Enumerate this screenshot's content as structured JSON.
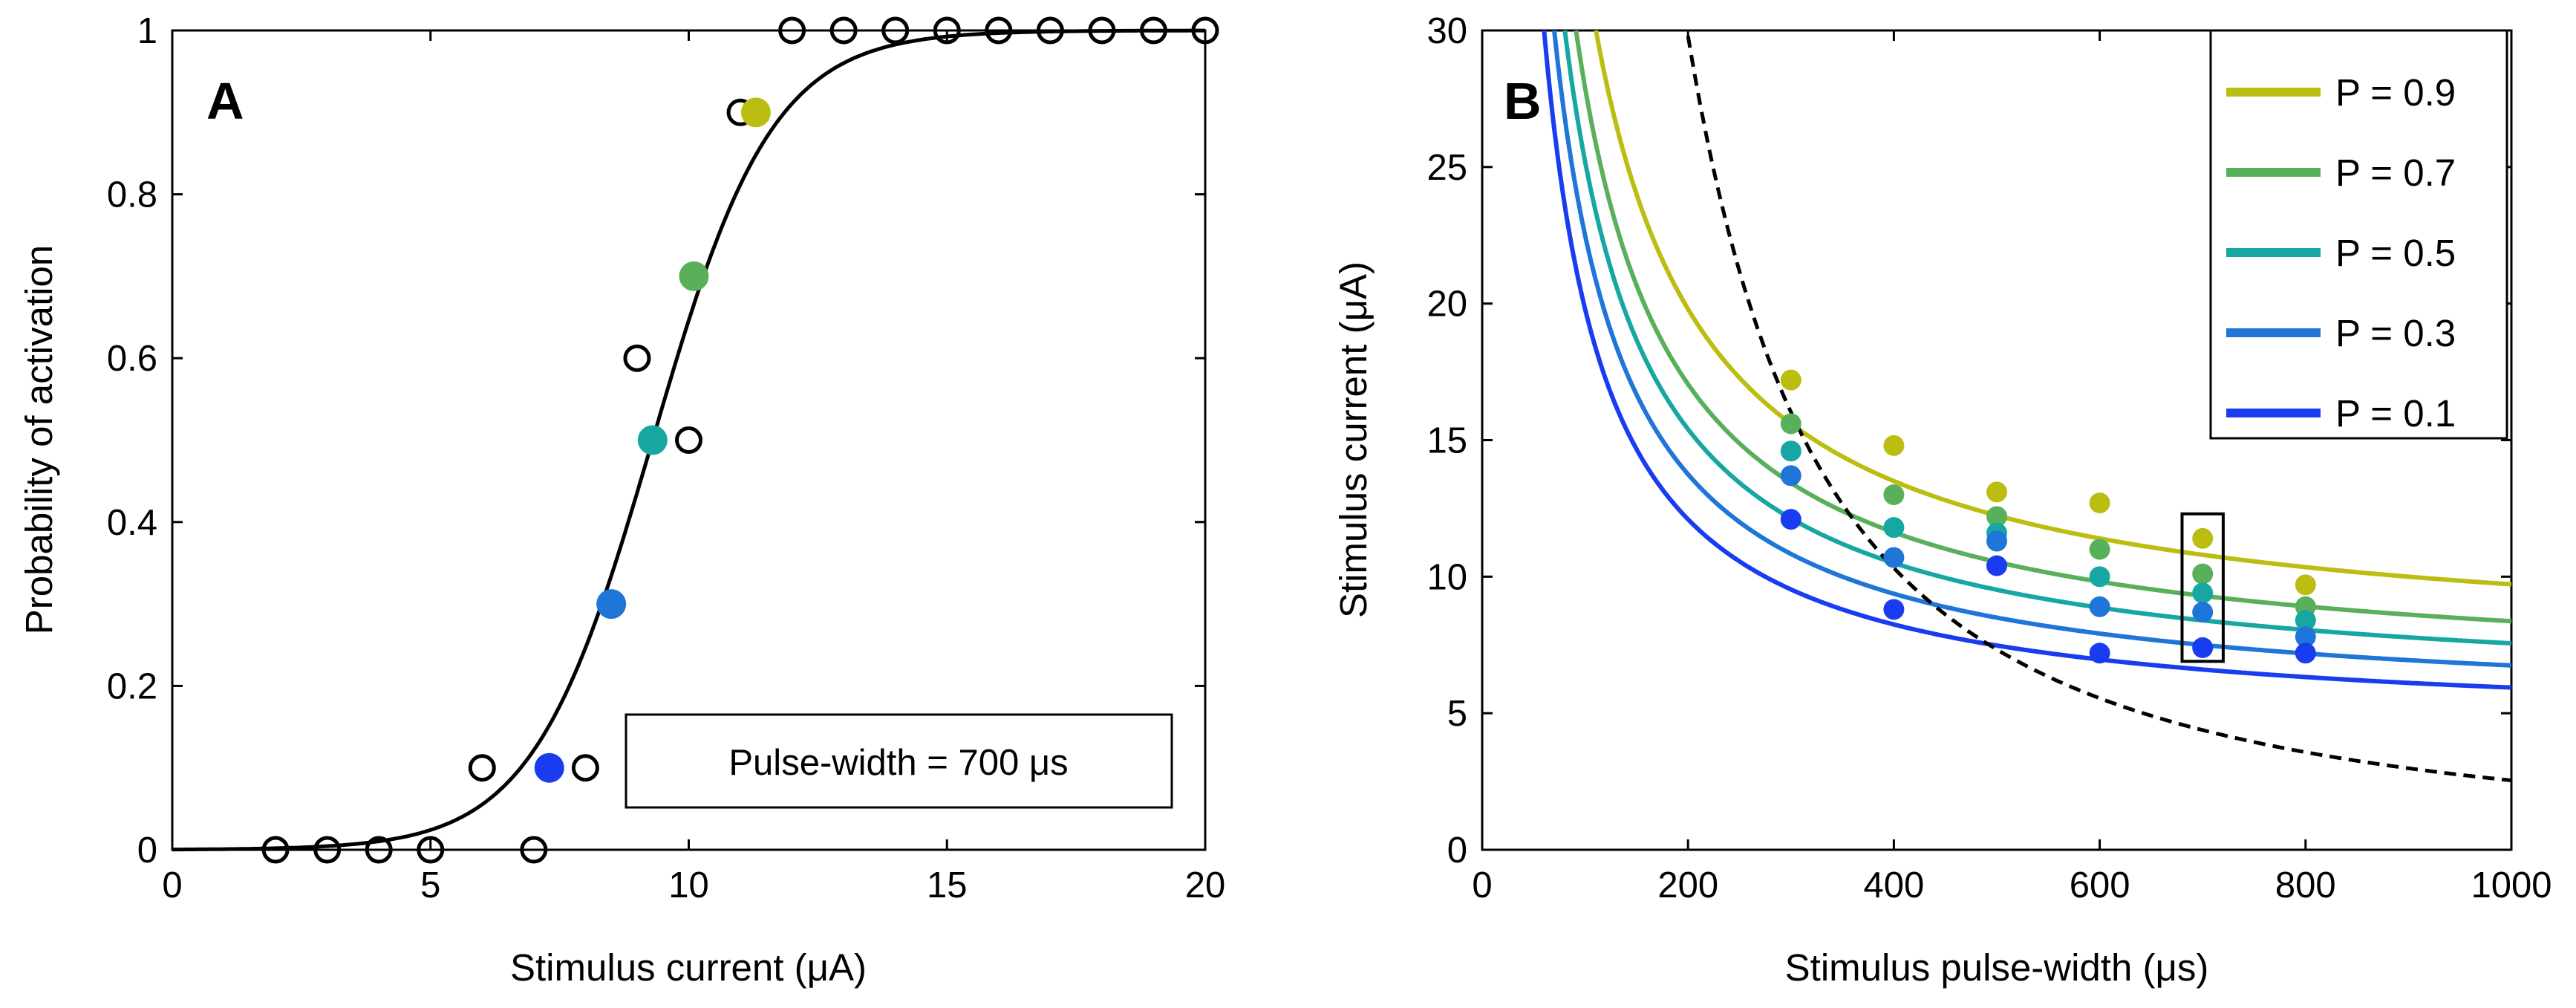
{
  "chart_data": [
    {
      "panel": "A",
      "type": "scatter",
      "title": "",
      "xlabel": "Stimulus current (μA)",
      "ylabel": "Probability of activation",
      "xlim": [
        0,
        20
      ],
      "ylim": [
        0,
        1
      ],
      "xticks": [
        "0",
        "5",
        "10",
        "15",
        "20"
      ],
      "yticks": [
        "0",
        "0.2",
        "0.4",
        "0.6",
        "0.8",
        "1"
      ],
      "annotation": "Pulse-width = 700 μs",
      "observed": {
        "x": [
          2,
          3,
          4,
          5,
          6,
          7,
          8,
          9,
          10,
          11,
          12,
          13,
          14,
          15,
          16,
          17,
          18,
          19,
          20
        ],
        "y": [
          0,
          0,
          0,
          0,
          0.1,
          0,
          0.1,
          0.6,
          0.5,
          0.9,
          1,
          1,
          1,
          1,
          1,
          1,
          1,
          1,
          1
        ]
      },
      "fit_curve": {
        "type": "sigmoid",
        "midpoint": 9.3,
        "slope": 0.86
      },
      "highlight_points": [
        {
          "label": "P = 0.1",
          "x": 7.3,
          "y": 0.1,
          "color": "#1a3cf0"
        },
        {
          "label": "P = 0.3",
          "x": 8.5,
          "y": 0.3,
          "color": "#1f75d8"
        },
        {
          "label": "P = 0.5",
          "x": 9.3,
          "y": 0.5,
          "color": "#17a7a2"
        },
        {
          "label": "P = 0.7",
          "x": 10.1,
          "y": 0.7,
          "color": "#5ab05a"
        },
        {
          "label": "P = 0.9",
          "x": 11.3,
          "y": 0.9,
          "color": "#bcbd11"
        }
      ]
    },
    {
      "panel": "B",
      "type": "line",
      "title": "",
      "xlabel": "Stimulus pulse-width (μs)",
      "ylabel": "Stimulus current (μA)",
      "xlim": [
        0,
        1000
      ],
      "ylim": [
        0,
        30
      ],
      "xticks": [
        "0",
        "200",
        "400",
        "600",
        "800",
        "1000"
      ],
      "yticks": [
        "0",
        "5",
        "10",
        "15",
        "20",
        "25",
        "30"
      ],
      "legend_position": "top-right",
      "x_points": [
        300,
        400,
        500,
        600,
        700,
        800
      ],
      "series": [
        {
          "name": "P = 0.9",
          "color": "#bcbd11",
          "rheobase": 7.2,
          "chronaxie": 350,
          "points": [
            17.2,
            14.8,
            13.1,
            12.7,
            11.4,
            9.7
          ]
        },
        {
          "name": "P = 0.7",
          "color": "#5ab05a",
          "rheobase": 6.2,
          "chronaxie": 350,
          "points": [
            15.6,
            13.0,
            12.2,
            11.0,
            10.1,
            8.9
          ]
        },
        {
          "name": "P = 0.5",
          "color": "#17a7a2",
          "rheobase": 5.6,
          "chronaxie": 350,
          "points": [
            14.6,
            11.8,
            11.6,
            10.0,
            9.4,
            8.4
          ]
        },
        {
          "name": "P = 0.3",
          "color": "#1f75d8",
          "rheobase": 5.0,
          "chronaxie": 350,
          "points": [
            13.7,
            10.7,
            11.3,
            8.9,
            8.7,
            7.8
          ]
        },
        {
          "name": "P = 0.1",
          "color": "#1a3cf0",
          "rheobase": 4.4,
          "chronaxie": 350,
          "points": [
            12.1,
            8.8,
            10.4,
            7.2,
            7.4,
            7.2
          ]
        }
      ],
      "dashed_reference": {
        "label": "",
        "constant": 29.8,
        "exponent": 0.9,
        "x_start": 200
      },
      "highlight_box": {
        "x_range": [
          680,
          720
        ],
        "y_range": [
          6.9,
          12.3
        ]
      }
    }
  ]
}
